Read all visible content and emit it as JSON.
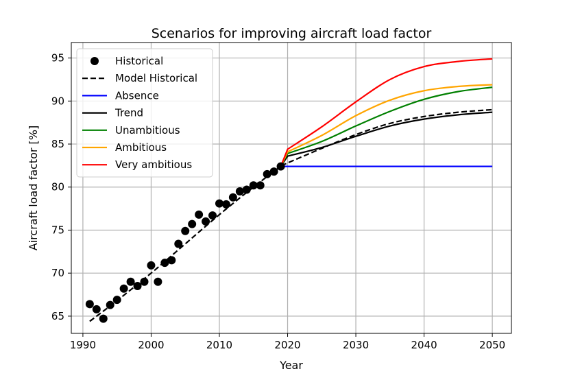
{
  "chart_data": {
    "type": "line",
    "title": "Scenarios for improving aircraft load factor",
    "xlabel": "Year",
    "ylabel": "Aircraft load factor [%]",
    "xlim": [
      1988.3,
      2052.8
    ],
    "ylim": [
      63.0,
      96.8
    ],
    "xticks": [
      1990,
      2000,
      2010,
      2020,
      2030,
      2040,
      2050
    ],
    "yticks": [
      65,
      70,
      75,
      80,
      85,
      90,
      95
    ],
    "grid": true,
    "legend_position": "top-left",
    "series": [
      {
        "name": "Historical",
        "style": "markers",
        "color": "#000000",
        "x": [
          1991,
          1992,
          1993,
          1994,
          1995,
          1996,
          1997,
          1998,
          1999,
          2000,
          2001,
          2002,
          2003,
          2004,
          2005,
          2006,
          2007,
          2008,
          2009,
          2010,
          2011,
          2012,
          2013,
          2014,
          2015,
          2016,
          2017,
          2018,
          2019
        ],
        "y": [
          66.4,
          65.8,
          64.7,
          66.3,
          66.9,
          68.2,
          69.0,
          68.5,
          69.0,
          70.9,
          69.0,
          71.2,
          71.5,
          73.4,
          74.9,
          75.7,
          76.8,
          76.0,
          76.7,
          78.1,
          78.0,
          78.8,
          79.5,
          79.7,
          80.2,
          80.2,
          81.5,
          81.8,
          82.4
        ]
      },
      {
        "name": "Model Historical",
        "style": "dashed",
        "color": "#000000",
        "x": [
          1991,
          1995,
          2000,
          2005,
          2010,
          2015,
          2019,
          2020,
          2025,
          2030,
          2035,
          2040,
          2045,
          2050
        ],
        "y": [
          64.4,
          66.8,
          70.0,
          73.4,
          76.8,
          80.0,
          82.4,
          82.8,
          84.5,
          86.1,
          87.4,
          88.2,
          88.7,
          89.0
        ]
      },
      {
        "name": "Absence",
        "style": "solid",
        "color": "#0000ff",
        "x": [
          2019,
          2050
        ],
        "y": [
          82.4,
          82.4
        ]
      },
      {
        "name": "Trend",
        "style": "solid",
        "color": "#000000",
        "x": [
          2019,
          2020,
          2025,
          2030,
          2035,
          2040,
          2045,
          2050
        ],
        "y": [
          82.4,
          83.6,
          84.6,
          85.9,
          87.1,
          87.9,
          88.4,
          88.7
        ]
      },
      {
        "name": "Unambitious",
        "style": "solid",
        "color": "#008000",
        "x": [
          2019,
          2020,
          2025,
          2030,
          2035,
          2040,
          2045,
          2050
        ],
        "y": [
          82.4,
          83.9,
          85.3,
          87.1,
          88.8,
          90.2,
          91.1,
          91.6
        ]
      },
      {
        "name": "Ambitious",
        "style": "solid",
        "color": "#ffa500",
        "x": [
          2019,
          2020,
          2025,
          2030,
          2035,
          2040,
          2045,
          2050
        ],
        "y": [
          82.4,
          84.1,
          86.0,
          88.3,
          90.1,
          91.2,
          91.7,
          91.9
        ]
      },
      {
        "name": "Very ambitious",
        "style": "solid",
        "color": "#ff0000",
        "x": [
          2019,
          2020,
          2025,
          2030,
          2035,
          2040,
          2045,
          2050
        ],
        "y": [
          82.4,
          84.4,
          87.0,
          89.9,
          92.5,
          94.0,
          94.6,
          94.9
        ]
      }
    ]
  }
}
